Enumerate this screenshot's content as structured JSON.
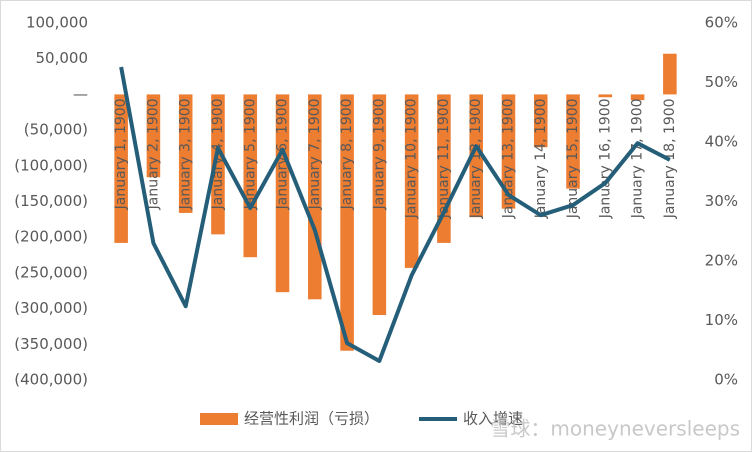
{
  "chart_data": {
    "type": "bar-line",
    "categories": [
      "January 1, 1900",
      "January 2, 1900",
      "January 3, 1900",
      "January 4, 1900",
      "January 5, 1900",
      "January 6, 1900",
      "January 7, 1900",
      "January 8, 1900",
      "January 9, 1900",
      "January 10, 1900",
      "January 11, 1900",
      "January 12, 1900",
      "January 13, 1900",
      "January 14, 1900",
      "January 15, 1900",
      "January 16, 1900",
      "January 17, 1900",
      "January 18, 1900"
    ],
    "series": [
      {
        "name": "经营性利润（亏损）",
        "type": "bar",
        "color": "#ed7d31",
        "values": [
          -208000,
          -116000,
          -166000,
          -196000,
          -228000,
          -277000,
          -287000,
          -359000,
          -309000,
          -243000,
          -208000,
          -172000,
          -160000,
          -74000,
          -132000,
          -4000,
          -8000,
          57000
        ]
      },
      {
        "name": "收入增速",
        "type": "line",
        "axis": "y2",
        "color": "#255e79",
        "values": [
          52.6,
          23,
          12.4,
          39,
          28.9,
          38.7,
          25.2,
          6.2,
          3.2,
          17.6,
          28.2,
          39.3,
          31.1,
          27.7,
          29.4,
          33.1,
          39.8,
          37
        ]
      }
    ],
    "ylim": [
      -400000,
      100000
    ],
    "yticks": [
      {
        "value": -400000,
        "label": "(400,000)"
      },
      {
        "value": -350000,
        "label": "(350,000)"
      },
      {
        "value": -300000,
        "label": "(300,000)"
      },
      {
        "value": -250000,
        "label": "(250,000)"
      },
      {
        "value": -200000,
        "label": "(200,000)"
      },
      {
        "value": -150000,
        "label": "(150,000)"
      },
      {
        "value": -100000,
        "label": "(100,000)"
      },
      {
        "value": -50000,
        "label": "(50,000)"
      },
      {
        "value": 0,
        "label": "—"
      },
      {
        "value": 50000,
        "label": "50,000"
      },
      {
        "value": 100000,
        "label": "100,000"
      }
    ],
    "y2lim": [
      0,
      60
    ],
    "y2ticks": [
      {
        "value": 0,
        "label": "0%"
      },
      {
        "value": 10,
        "label": "10%"
      },
      {
        "value": 20,
        "label": "20%"
      },
      {
        "value": 30,
        "label": "30%"
      },
      {
        "value": 40,
        "label": "40%"
      },
      {
        "value": 50,
        "label": "50%"
      },
      {
        "value": 60,
        "label": "60%"
      }
    ],
    "legend": "bottom",
    "watermark": "雪球：moneyneversleeps"
  }
}
